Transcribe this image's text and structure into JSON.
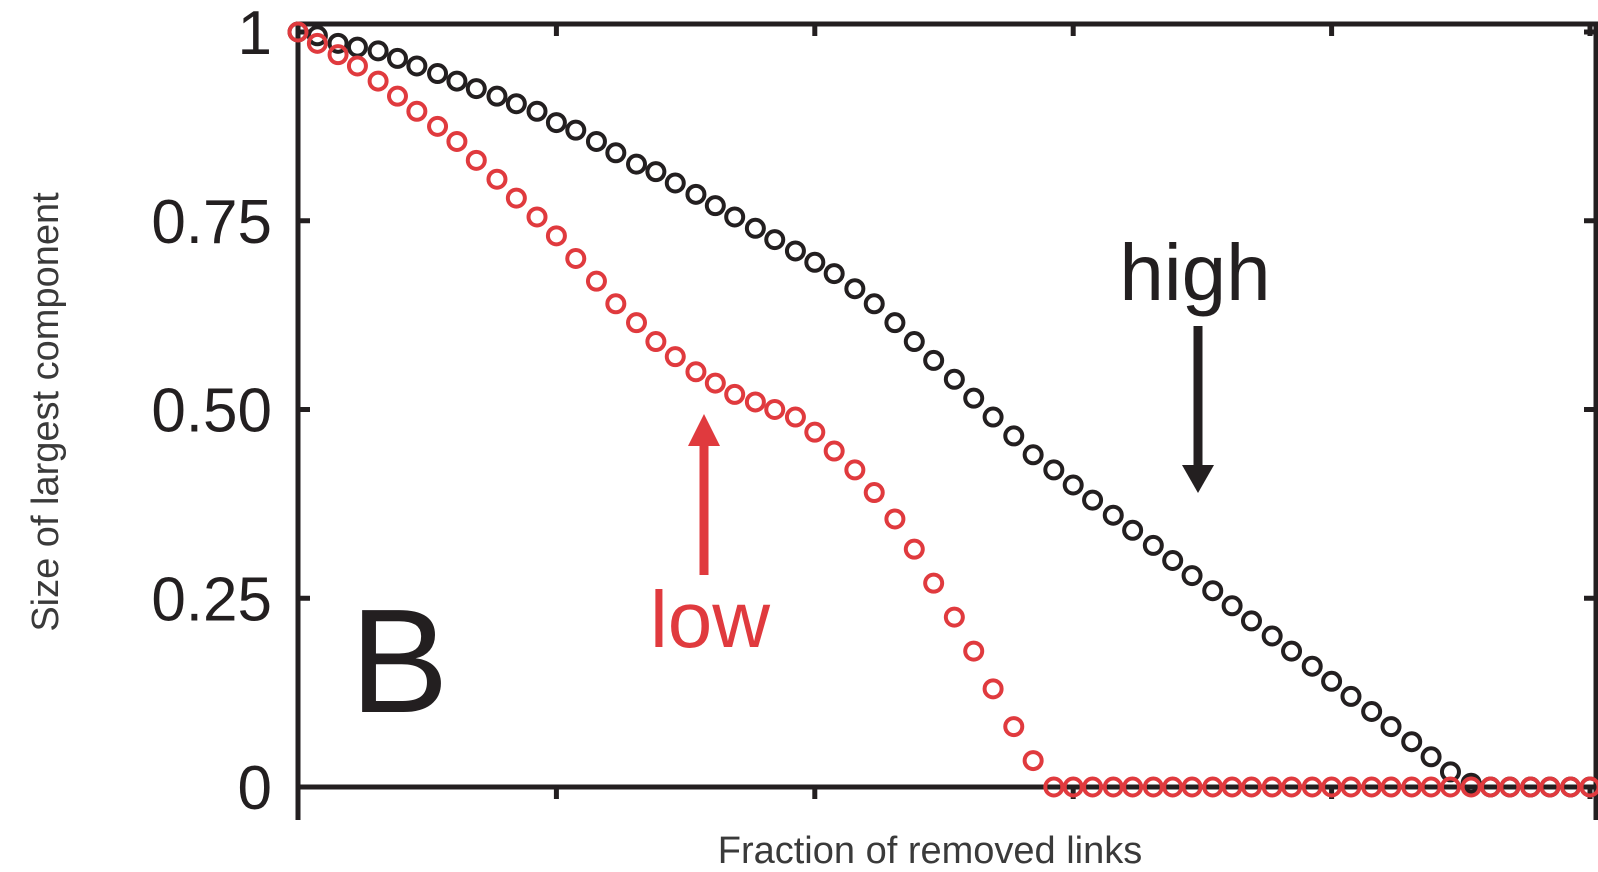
{
  "chart_data": {
    "type": "scatter",
    "title": "",
    "panel_label": "B",
    "xlabel": "Fraction of removed links",
    "ylabel": "Size of largest component",
    "xlim": [
      0,
      1
    ],
    "ylim": [
      0,
      1
    ],
    "x_ticks": [
      0,
      0.2,
      0.4,
      0.6,
      0.8,
      1.0
    ],
    "x_tick_labels": [],
    "y_ticks": [
      0,
      0.25,
      0.5,
      0.75,
      1
    ],
    "y_tick_labels": [
      "0",
      "0.25",
      "0.50",
      "0.75",
      "1"
    ],
    "grid": false,
    "marker": "open-circle",
    "series": [
      {
        "name": "high",
        "color": "#231f20",
        "x": [
          0.0,
          0.015,
          0.031,
          0.046,
          0.062,
          0.077,
          0.092,
          0.108,
          0.123,
          0.138,
          0.154,
          0.169,
          0.185,
          0.2,
          0.215,
          0.231,
          0.246,
          0.262,
          0.277,
          0.292,
          0.308,
          0.323,
          0.338,
          0.354,
          0.369,
          0.385,
          0.4,
          0.415,
          0.431,
          0.446,
          0.462,
          0.477,
          0.492,
          0.508,
          0.523,
          0.538,
          0.554,
          0.569,
          0.585,
          0.6,
          0.615,
          0.631,
          0.646,
          0.662,
          0.677,
          0.692,
          0.708,
          0.723,
          0.738,
          0.754,
          0.769,
          0.785,
          0.8,
          0.815,
          0.831,
          0.846,
          0.862,
          0.877,
          0.892,
          0.908,
          0.923,
          0.938,
          0.954,
          0.969,
          0.985,
          1.0
        ],
        "y": [
          1.0,
          0.995,
          0.985,
          0.98,
          0.975,
          0.965,
          0.955,
          0.945,
          0.935,
          0.925,
          0.915,
          0.905,
          0.895,
          0.88,
          0.87,
          0.855,
          0.84,
          0.825,
          0.815,
          0.8,
          0.785,
          0.77,
          0.755,
          0.74,
          0.725,
          0.71,
          0.695,
          0.68,
          0.66,
          0.64,
          0.615,
          0.59,
          0.565,
          0.54,
          0.515,
          0.49,
          0.465,
          0.44,
          0.42,
          0.4,
          0.38,
          0.36,
          0.34,
          0.32,
          0.3,
          0.28,
          0.26,
          0.24,
          0.22,
          0.2,
          0.18,
          0.16,
          0.14,
          0.12,
          0.1,
          0.08,
          0.06,
          0.04,
          0.02,
          0.005,
          0.0,
          0.0,
          0.0,
          0.0,
          0.0,
          0.0
        ]
      },
      {
        "name": "low",
        "color": "#e03a3e",
        "x": [
          0.0,
          0.015,
          0.031,
          0.046,
          0.062,
          0.077,
          0.092,
          0.108,
          0.123,
          0.138,
          0.154,
          0.169,
          0.185,
          0.2,
          0.215,
          0.231,
          0.246,
          0.262,
          0.277,
          0.292,
          0.308,
          0.323,
          0.338,
          0.354,
          0.369,
          0.385,
          0.4,
          0.415,
          0.431,
          0.446,
          0.462,
          0.477,
          0.492,
          0.508,
          0.523,
          0.538,
          0.554,
          0.569,
          0.585,
          0.6,
          0.615,
          0.631,
          0.646,
          0.662,
          0.677,
          0.692,
          0.708,
          0.723,
          0.738,
          0.754,
          0.769,
          0.785,
          0.8,
          0.815,
          0.831,
          0.846,
          0.862,
          0.877,
          0.892,
          0.908,
          0.923,
          0.938,
          0.954,
          0.969,
          0.985,
          1.0
        ],
        "y": [
          1.0,
          0.985,
          0.97,
          0.955,
          0.935,
          0.915,
          0.895,
          0.875,
          0.855,
          0.83,
          0.805,
          0.78,
          0.755,
          0.73,
          0.7,
          0.67,
          0.64,
          0.615,
          0.59,
          0.57,
          0.55,
          0.535,
          0.52,
          0.51,
          0.5,
          0.49,
          0.47,
          0.445,
          0.42,
          0.39,
          0.355,
          0.315,
          0.27,
          0.225,
          0.18,
          0.13,
          0.08,
          0.035,
          0.0,
          0.0,
          0.0,
          0.0,
          0.0,
          0.0,
          0.0,
          0.0,
          0.0,
          0.0,
          0.0,
          0.0,
          0.0,
          0.0,
          0.0,
          0.0,
          0.0,
          0.0,
          0.0,
          0.0,
          0.0,
          0.0,
          0.0,
          0.0,
          0.0,
          0.0,
          0.0,
          0.0
        ]
      }
    ],
    "annotations": [
      {
        "text": "high",
        "color": "#231f20",
        "arrow": "down",
        "x": 0.69,
        "y": 0.39
      },
      {
        "text": "low",
        "color": "#e03a3e",
        "arrow": "up",
        "x": 0.31,
        "y": 0.49
      }
    ]
  }
}
